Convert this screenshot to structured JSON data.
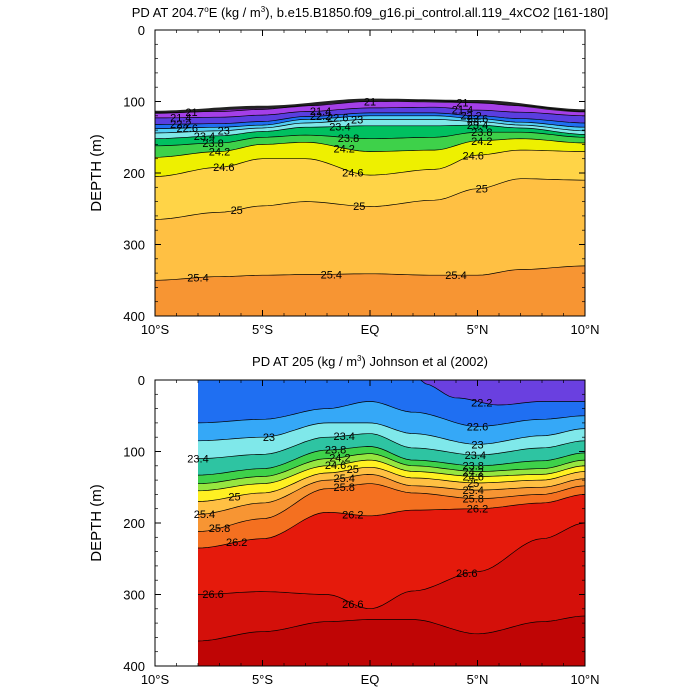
{
  "panels": [
    {
      "title_prefix": "PD AT 204.7",
      "title_deg": "o",
      "title_mid": "E (kg / m",
      "title_exp": "3",
      "title_suffix": "), b.e15.B1850.f09_g16.pi_control.all.119_4xCO2 [161-180]",
      "ylabel": "DEPTH (m)",
      "yticks": [
        "0",
        "100",
        "200",
        "300",
        "400"
      ],
      "xticks": [
        "10°S",
        "5°S",
        "EQ",
        "5°N",
        "10°N"
      ]
    },
    {
      "title_prefix": "PD AT 205 (kg / m",
      "title_exp": "3",
      "title_suffix": ") Johnson et al (2002)",
      "ylabel": "DEPTH (m)",
      "yticks": [
        "0",
        "100",
        "200",
        "300",
        "400"
      ],
      "xticks": [
        "10°S",
        "5°S",
        "EQ",
        "5°N",
        "10°N"
      ]
    }
  ],
  "chart_data": [
    {
      "type": "heatmap",
      "subtype": "filled-contour",
      "title": "PD AT 204.7°E (kg / m3), b.e15.B1850.f09_g16.pi_control.all.119_4xCO2 [161-180]",
      "xlabel": "",
      "ylabel": "DEPTH (m)",
      "xlim": [
        -10,
        10
      ],
      "ylim": [
        400,
        0
      ],
      "x_ticks": [
        "10°S",
        "5°S",
        "EQ",
        "5°N",
        "10°N"
      ],
      "y_ticks": [
        0,
        100,
        200,
        300,
        400
      ],
      "contour_interval": 0.2,
      "colors": [
        "#7a1fb0",
        "#c0009a",
        "#a43fe8",
        "#5a3ee0",
        "#1a3ee8",
        "#1f6ff2",
        "#35a8f7",
        "#52cff5",
        "#7fe8ea",
        "#2ec4a2",
        "#00c060",
        "#3ed14a",
        "#96e640",
        "#eef000",
        "#fff022",
        "#ffd447",
        "#ffc043",
        "#fbaa3c",
        "#f79533"
      ],
      "surface_depth": {
        "x": [
          -10,
          -5,
          0,
          5,
          10
        ],
        "depth": [
          115,
          108,
          98,
          100,
          113
        ]
      },
      "series": [
        {
          "name": "21",
          "x": [
            -10,
            -7,
            -5,
            -3,
            0,
            3,
            5,
            7,
            10
          ],
          "depth": [
            116,
            114,
            111,
            106,
            100,
            99,
            102,
            106,
            114
          ]
        },
        {
          "name": "21.4",
          "x": [
            -10,
            -7,
            -5,
            -3,
            0,
            3,
            5,
            7,
            10
          ],
          "depth": [
            123,
            122,
            119,
            114,
            109,
            108,
            112,
            115,
            120
          ]
        },
        {
          "name": "22.2",
          "x": [
            -10,
            -7,
            -5,
            -3,
            0,
            3,
            5,
            7,
            10
          ],
          "depth": [
            132,
            131,
            128,
            121,
            116,
            116,
            120,
            124,
            130
          ]
        },
        {
          "name": "22.6",
          "x": [
            -10,
            -7,
            -5,
            -3,
            0,
            3,
            5,
            7,
            10
          ],
          "depth": [
            138,
            136,
            133,
            125,
            120,
            120,
            124,
            129,
            136
          ]
        },
        {
          "name": "23",
          "x": [
            -10,
            -7,
            -5,
            -3,
            0,
            3,
            5,
            7,
            10
          ],
          "depth": [
            144,
            141,
            137,
            130,
            125,
            125,
            128,
            133,
            141
          ]
        },
        {
          "name": "23.4",
          "x": [
            -10,
            -7,
            -5,
            -3,
            0,
            3,
            5,
            7,
            10
          ],
          "depth": [
            152,
            148,
            142,
            136,
            134,
            134,
            133,
            137,
            146
          ]
        },
        {
          "name": "23.8",
          "x": [
            -10,
            -7,
            -5,
            -3,
            0,
            3,
            5,
            7,
            10
          ],
          "depth": [
            162,
            158,
            150,
            147,
            152,
            150,
            143,
            143,
            150
          ]
        },
        {
          "name": "24.2",
          "x": [
            -10,
            -7,
            -5,
            -3,
            0,
            3,
            5,
            7,
            10
          ],
          "depth": [
            178,
            170,
            160,
            157,
            170,
            168,
            155,
            152,
            158
          ]
        },
        {
          "name": "24.6",
          "x": [
            -10,
            -7,
            -5,
            -3,
            0,
            3,
            5,
            7,
            10
          ],
          "depth": [
            205,
            192,
            180,
            180,
            203,
            195,
            175,
            168,
            170
          ]
        },
        {
          "name": "25",
          "x": [
            -10,
            -7,
            -5,
            -3,
            0,
            3,
            5,
            7,
            10
          ],
          "depth": [
            265,
            255,
            246,
            240,
            247,
            238,
            222,
            208,
            210
          ]
        },
        {
          "name": "25.4",
          "x": [
            -10,
            -7,
            -5,
            -3,
            0,
            3,
            5,
            7,
            10
          ],
          "depth": [
            350,
            345,
            343,
            342,
            341,
            343,
            343,
            335,
            330
          ]
        }
      ]
    },
    {
      "type": "heatmap",
      "subtype": "filled-contour",
      "title": "PD AT 205 (kg / m3) Johnson et al (2002)",
      "xlabel": "",
      "ylabel": "DEPTH (m)",
      "xlim": [
        -10,
        10
      ],
      "ylim": [
        400,
        0
      ],
      "data_xrange": [
        -8,
        10
      ],
      "x_ticks": [
        "10°S",
        "5°S",
        "EQ",
        "5°N",
        "10°N"
      ],
      "y_ticks": [
        0,
        100,
        200,
        300,
        400
      ],
      "contour_interval": 0.2,
      "colors": [
        "#6a40e0",
        "#1a3ee8",
        "#1f6ff2",
        "#35a8f7",
        "#52cff5",
        "#7fe8ea",
        "#2ec4a2",
        "#00c060",
        "#3ed14a",
        "#96e640",
        "#eef000",
        "#fff022",
        "#ffc043",
        "#fbaa3c",
        "#f79533",
        "#f47020",
        "#f24010",
        "#e51a0c",
        "#d4100a",
        "#c90807",
        "#bf0505"
      ],
      "series": [
        {
          "name": "22.2",
          "x": [
            2.5,
            4,
            6,
            8,
            10
          ],
          "depth": [
            5,
            25,
            35,
            30,
            30
          ]
        },
        {
          "name": "22.6",
          "x": [
            -8,
            -5,
            -2,
            0,
            2,
            5,
            8,
            10
          ],
          "depth": [
            60,
            55,
            40,
            30,
            45,
            65,
            55,
            50
          ]
        },
        {
          "name": "23",
          "x": [
            -8,
            -5,
            -2,
            0,
            2,
            5,
            8,
            10
          ],
          "depth": [
            85,
            80,
            60,
            60,
            75,
            90,
            78,
            68
          ]
        },
        {
          "name": "23.4",
          "x": [
            -8,
            -5,
            -2,
            0,
            2,
            5,
            8,
            10
          ],
          "depth": [
            110,
            104,
            80,
            75,
            95,
            105,
            95,
            85
          ]
        },
        {
          "name": "23.8",
          "x": [
            -8,
            -5,
            -2,
            0,
            2,
            5,
            8,
            10
          ],
          "depth": [
            133,
            124,
            98,
            93,
            112,
            120,
            113,
            102
          ]
        },
        {
          "name": "24.2",
          "x": [
            -8,
            -5,
            -2,
            0,
            2,
            5,
            8,
            10
          ],
          "depth": [
            145,
            135,
            110,
            103,
            120,
            128,
            124,
            112
          ]
        },
        {
          "name": "24.6",
          "x": [
            -8,
            -5,
            -2,
            0,
            2,
            5,
            8,
            10
          ],
          "depth": [
            155,
            145,
            120,
            112,
            128,
            135,
            132,
            120
          ]
        },
        {
          "name": "25",
          "x": [
            -8,
            -5,
            -2,
            0,
            2,
            5,
            8,
            10
          ],
          "depth": [
            170,
            158,
            130,
            122,
            137,
            144,
            140,
            128
          ]
        },
        {
          "name": "25.4",
          "x": [
            -8,
            -5,
            -2,
            0,
            2,
            5,
            8,
            10
          ],
          "depth": [
            188,
            172,
            140,
            132,
            148,
            154,
            150,
            138
          ]
        },
        {
          "name": "25.8",
          "x": [
            -8,
            -5,
            -2,
            0,
            2,
            5,
            8,
            10
          ],
          "depth": [
            212,
            194,
            152,
            145,
            158,
            166,
            160,
            148
          ]
        },
        {
          "name": "26.2",
          "x": [
            -8,
            -5,
            -2,
            0,
            2,
            5,
            8,
            10
          ],
          "depth": [
            235,
            222,
            185,
            190,
            182,
            180,
            172,
            160
          ]
        },
        {
          "name": "26.6",
          "x": [
            -8,
            -5,
            -2,
            0,
            2,
            5,
            8,
            10
          ],
          "depth": [
            300,
            296,
            300,
            320,
            295,
            268,
            222,
            200
          ]
        },
        {
          "name": "26.8",
          "x": [
            -8,
            -5,
            -2,
            0,
            2,
            5,
            8,
            10
          ],
          "depth": [
            365,
            352,
            338,
            335,
            335,
            355,
            338,
            330
          ]
        }
      ]
    }
  ]
}
